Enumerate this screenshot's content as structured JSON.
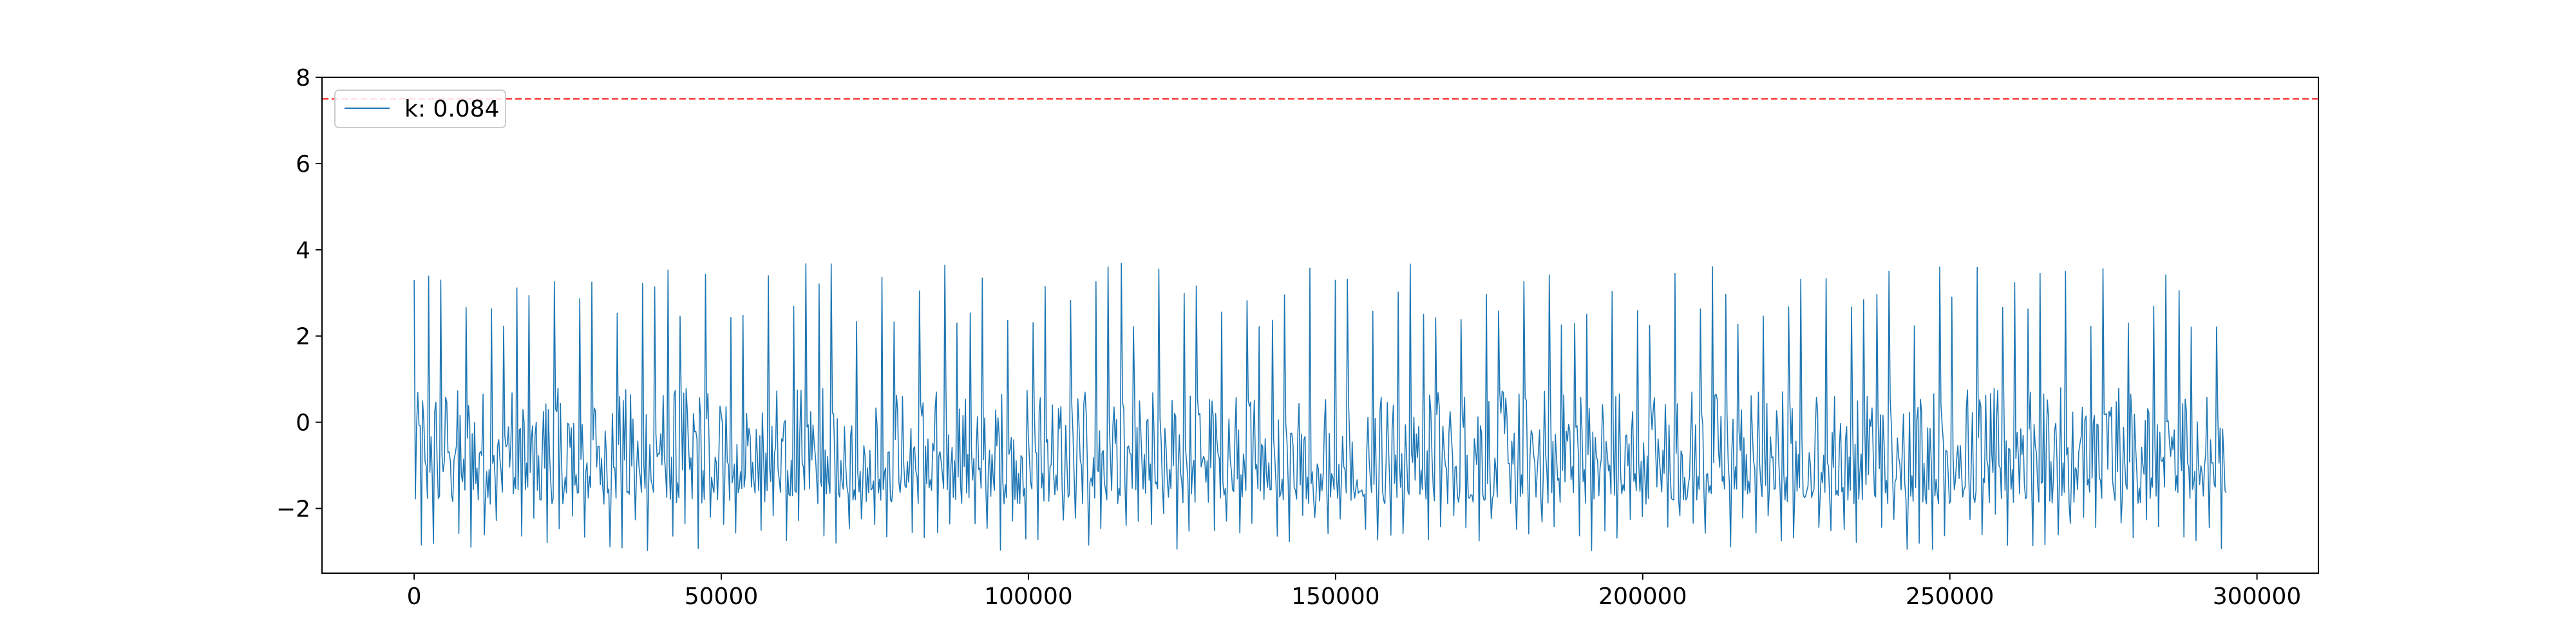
{
  "chart_data": {
    "type": "line",
    "title": "",
    "xlabel": "",
    "ylabel": "",
    "xlim": [
      -15000,
      310000
    ],
    "ylim": [
      -3.5,
      8
    ],
    "grid": false,
    "legend": {
      "placement": "top-left",
      "entries": [
        "k: 0.084"
      ]
    },
    "xticks": [
      0,
      50000,
      100000,
      150000,
      200000,
      250000,
      300000
    ],
    "xtick_labels": [
      "0",
      "50000",
      "100000",
      "150000",
      "200000",
      "250000",
      "300000"
    ],
    "yticks": [
      -2,
      0,
      2,
      4,
      6,
      8
    ],
    "ytick_labels": [
      "−2",
      "0",
      "2",
      "4",
      "6",
      "8"
    ],
    "series": [
      {
        "name": "k: 0.084",
        "color": "#1f77b4",
        "x_range": [
          0,
          295000
        ],
        "y_min": -3.0,
        "y_max": 3.7,
        "y_baseline_band": [
          -1.9,
          0.8
        ]
      }
    ],
    "threshold_line": {
      "y": 7.5,
      "color": "#ff0000",
      "style": "dashed"
    }
  }
}
